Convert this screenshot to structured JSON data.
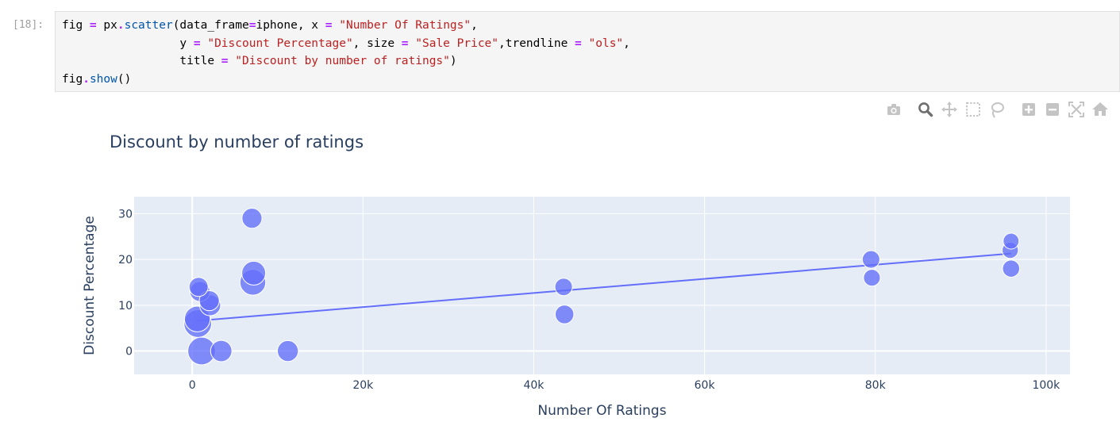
{
  "cell": {
    "prompt": "[18]:",
    "lines": [
      [
        {
          "t": "fig ",
          "c": ""
        },
        {
          "t": "=",
          "c": "op"
        },
        {
          "t": " px",
          "c": ""
        },
        {
          "t": ".",
          "c": "op"
        },
        {
          "t": "scatter",
          "c": "attr"
        },
        {
          "t": "(data_frame",
          "c": ""
        },
        {
          "t": "=",
          "c": "op"
        },
        {
          "t": "iphone, x ",
          "c": ""
        },
        {
          "t": "=",
          "c": "op"
        },
        {
          "t": " ",
          "c": ""
        },
        {
          "t": "\"Number Of Ratings\"",
          "c": "str"
        },
        {
          "t": ",",
          "c": ""
        }
      ],
      [
        {
          "t": "                 y ",
          "c": ""
        },
        {
          "t": "=",
          "c": "op"
        },
        {
          "t": " ",
          "c": ""
        },
        {
          "t": "\"Discount Percentage\"",
          "c": "str"
        },
        {
          "t": ", size ",
          "c": ""
        },
        {
          "t": "=",
          "c": "op"
        },
        {
          "t": " ",
          "c": ""
        },
        {
          "t": "\"Sale Price\"",
          "c": "str"
        },
        {
          "t": ",trendline ",
          "c": ""
        },
        {
          "t": "=",
          "c": "op"
        },
        {
          "t": " ",
          "c": ""
        },
        {
          "t": "\"ols\"",
          "c": "str"
        },
        {
          "t": ",",
          "c": ""
        }
      ],
      [
        {
          "t": "                 title ",
          "c": ""
        },
        {
          "t": "=",
          "c": "op"
        },
        {
          "t": " ",
          "c": ""
        },
        {
          "t": "\"Discount by number of ratings\"",
          "c": "str"
        },
        {
          "t": ")",
          "c": ""
        }
      ],
      [
        {
          "t": "fig",
          "c": ""
        },
        {
          "t": ".",
          "c": "op"
        },
        {
          "t": "show",
          "c": "attr"
        },
        {
          "t": "()",
          "c": ""
        }
      ]
    ]
  },
  "modebar": {
    "buttons": [
      {
        "icon": "camera-icon",
        "name": "download-plot-button"
      },
      {
        "icon": "zoom-icon",
        "name": "zoom-button"
      },
      {
        "icon": "pan-icon",
        "name": "pan-button"
      },
      {
        "icon": "box-select-icon",
        "name": "box-select-button"
      },
      {
        "icon": "lasso-select-icon",
        "name": "lasso-select-button"
      },
      {
        "icon": "zoom-in-icon",
        "name": "zoom-in-button"
      },
      {
        "icon": "zoom-out-icon",
        "name": "zoom-out-button"
      },
      {
        "icon": "autoscale-icon",
        "name": "autoscale-button"
      },
      {
        "icon": "reset-axes-icon",
        "name": "reset-axes-button"
      }
    ],
    "active_icon": "zoom-icon"
  },
  "chart_data": {
    "type": "scatter",
    "title": "Discount by number of ratings",
    "xlabel": "Number Of Ratings",
    "ylabel": "Discount Percentage",
    "xlim": [
      -6800,
      102800
    ],
    "ylim": [
      -5.1,
      33.7
    ],
    "xticks": [
      0,
      20000,
      40000,
      60000,
      80000,
      100000
    ],
    "xtick_labels": [
      "0",
      "20k",
      "40k",
      "60k",
      "80k",
      "100k"
    ],
    "yticks": [
      0,
      10,
      20,
      30
    ],
    "ytick_labels": [
      "0",
      "10",
      "20",
      "30"
    ],
    "grid": true,
    "colors": {
      "marker": "#636efa",
      "trendline": "#636efa",
      "plot_bg": "#e5ecf6",
      "grid": "#ffffff",
      "axis_text": "#2a3f5f",
      "modebar_icon": "#c4c4c4",
      "modebar_active": "#6f6f6f"
    },
    "points": [
      {
        "x": 7000,
        "y": 29,
        "size": 0.55
      },
      {
        "x": 7200,
        "y": 17,
        "size": 0.75
      },
      {
        "x": 7100,
        "y": 15,
        "size": 0.85
      },
      {
        "x": 750,
        "y": 14,
        "size": 0.5
      },
      {
        "x": 900,
        "y": 13,
        "size": 0.55
      },
      {
        "x": 2000,
        "y": 11,
        "size": 0.55
      },
      {
        "x": 2100,
        "y": 10,
        "size": 0.6
      },
      {
        "x": 600,
        "y": 7,
        "size": 0.85
      },
      {
        "x": 650,
        "y": 6,
        "size": 0.95
      },
      {
        "x": 1100,
        "y": 0,
        "size": 0.95
      },
      {
        "x": 3400,
        "y": 0,
        "size": 0.62
      },
      {
        "x": 11200,
        "y": 0,
        "size": 0.6
      },
      {
        "x": 43500,
        "y": 14,
        "size": 0.42
      },
      {
        "x": 43600,
        "y": 8,
        "size": 0.48
      },
      {
        "x": 79500,
        "y": 20,
        "size": 0.42
      },
      {
        "x": 79600,
        "y": 16,
        "size": 0.38
      },
      {
        "x": 95900,
        "y": 24,
        "size": 0.33
      },
      {
        "x": 95800,
        "y": 22,
        "size": 0.35
      },
      {
        "x": 95900,
        "y": 18,
        "size": 0.4
      }
    ],
    "trendline": {
      "x": [
        600,
        95900
      ],
      "y": [
        6.6,
        21.3
      ]
    }
  }
}
